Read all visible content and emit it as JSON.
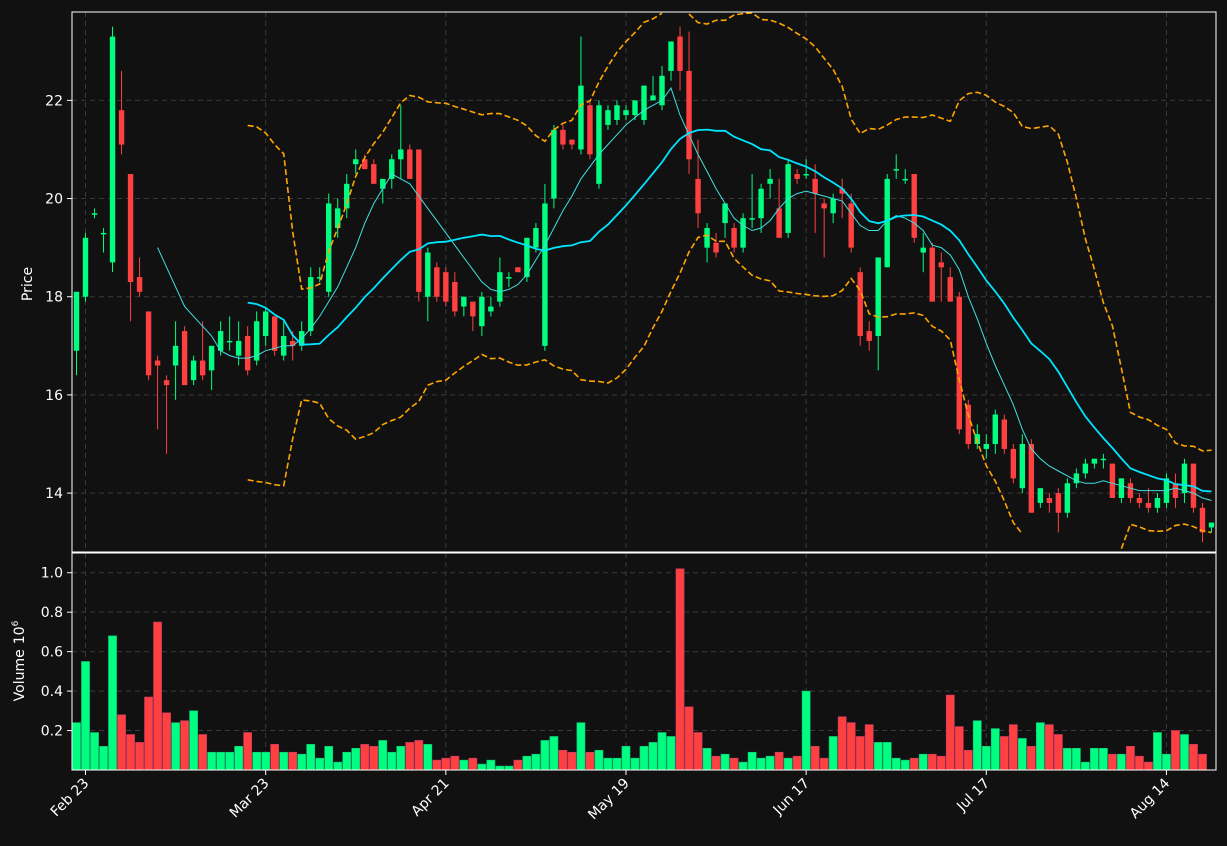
{
  "colors": {
    "background": "#111111",
    "up": "#00ff80",
    "down": "#ff4040",
    "ma_fast": "#40e0e0",
    "ma_slow": "#00e5ff",
    "bands": "#ffa500",
    "grid": "#3a3a3a",
    "axis": "#ffffff",
    "text": "#ffffff"
  },
  "chart_data": [
    {
      "type": "candlestick",
      "ylabel": "Price",
      "ylim": [
        12.8,
        23.8
      ],
      "yticks": [
        "14",
        "16",
        "18",
        "20",
        "22"
      ],
      "grid": true,
      "overlays": [
        "moving average (short)",
        "moving average (long)",
        "upper band",
        "lower band"
      ],
      "ohlc": [
        [
          16.9,
          18.1,
          16.4,
          18.1
        ],
        [
          18.0,
          19.3,
          17.9,
          19.2
        ],
        [
          19.7,
          19.8,
          19.6,
          19.7
        ],
        [
          19.3,
          19.4,
          18.9,
          19.3
        ],
        [
          18.7,
          23.5,
          18.5,
          23.3
        ],
        [
          21.8,
          22.6,
          20.9,
          21.1
        ],
        [
          20.5,
          20.5,
          17.5,
          18.3
        ],
        [
          18.4,
          18.8,
          18.0,
          18.1
        ],
        [
          17.7,
          17.7,
          16.3,
          16.4
        ],
        [
          16.7,
          16.8,
          15.3,
          16.6
        ],
        [
          16.3,
          16.4,
          14.8,
          16.2
        ],
        [
          16.6,
          17.5,
          15.9,
          17.0
        ],
        [
          17.3,
          17.4,
          16.2,
          16.2
        ],
        [
          16.3,
          16.8,
          16.2,
          16.7
        ],
        [
          16.7,
          17.5,
          16.3,
          16.4
        ],
        [
          16.5,
          17.0,
          16.1,
          17.0
        ],
        [
          16.9,
          17.5,
          16.8,
          17.3
        ],
        [
          17.1,
          17.6,
          16.9,
          17.1
        ],
        [
          16.8,
          17.5,
          16.6,
          17.1
        ],
        [
          17.2,
          17.4,
          16.4,
          16.5
        ],
        [
          16.7,
          17.7,
          16.6,
          17.5
        ],
        [
          17.2,
          17.8,
          17.0,
          17.7
        ],
        [
          17.6,
          17.6,
          16.8,
          16.9
        ],
        [
          16.8,
          17.5,
          16.7,
          17.2
        ],
        [
          17.1,
          17.3,
          16.7,
          17.0
        ],
        [
          17.0,
          17.5,
          16.9,
          17.3
        ],
        [
          17.3,
          18.6,
          17.2,
          18.4
        ],
        [
          18.4,
          18.6,
          18.3,
          18.4
        ],
        [
          18.1,
          20.1,
          18.0,
          19.9
        ],
        [
          19.4,
          20.0,
          19.2,
          19.8
        ],
        [
          19.8,
          20.5,
          19.6,
          20.3
        ],
        [
          20.7,
          21.0,
          20.5,
          20.8
        ],
        [
          20.8,
          20.9,
          20.6,
          20.6
        ],
        [
          20.7,
          20.8,
          20.3,
          20.3
        ],
        [
          20.2,
          20.4,
          19.9,
          20.4
        ],
        [
          20.4,
          20.9,
          20.2,
          20.8
        ],
        [
          20.8,
          21.9,
          20.4,
          21.0
        ],
        [
          21.0,
          21.1,
          20.4,
          20.4
        ],
        [
          21.0,
          21.0,
          17.9,
          18.1
        ],
        [
          18.0,
          19.0,
          17.5,
          18.9
        ],
        [
          18.6,
          18.7,
          17.9,
          18.0
        ],
        [
          18.5,
          18.6,
          17.8,
          17.9
        ],
        [
          18.3,
          18.5,
          17.6,
          17.7
        ],
        [
          17.8,
          18.0,
          17.6,
          18.0
        ],
        [
          17.9,
          17.9,
          17.3,
          17.6
        ],
        [
          17.4,
          18.1,
          17.2,
          18.0
        ],
        [
          17.7,
          18.0,
          17.6,
          17.8
        ],
        [
          17.9,
          18.8,
          17.8,
          18.5
        ],
        [
          18.4,
          18.5,
          18.2,
          18.4
        ],
        [
          18.6,
          18.6,
          18.5,
          18.5
        ],
        [
          18.4,
          19.2,
          18.3,
          19.2
        ],
        [
          19.0,
          19.5,
          18.9,
          19.4
        ],
        [
          17.0,
          20.3,
          16.9,
          19.9
        ],
        [
          20.0,
          21.5,
          19.8,
          21.4
        ],
        [
          21.4,
          21.5,
          21.0,
          21.1
        ],
        [
          21.2,
          21.2,
          21.0,
          21.1
        ],
        [
          21.0,
          23.3,
          20.9,
          22.3
        ],
        [
          21.9,
          22.0,
          20.8,
          20.9
        ],
        [
          20.3,
          22.0,
          20.2,
          21.9
        ],
        [
          21.5,
          21.9,
          21.4,
          21.8
        ],
        [
          21.6,
          22.0,
          21.5,
          21.9
        ],
        [
          21.7,
          21.9,
          21.6,
          21.8
        ],
        [
          21.7,
          22.0,
          21.6,
          22.0
        ],
        [
          21.6,
          22.3,
          21.5,
          22.3
        ],
        [
          22.0,
          22.5,
          22.0,
          22.1
        ],
        [
          21.9,
          22.7,
          21.8,
          22.5
        ],
        [
          22.6,
          23.2,
          22.4,
          23.2
        ],
        [
          23.3,
          23.5,
          22.2,
          22.6
        ],
        [
          22.6,
          23.4,
          20.5,
          20.8
        ],
        [
          20.4,
          21.2,
          19.4,
          19.7
        ],
        [
          19.0,
          19.5,
          18.7,
          19.4
        ],
        [
          19.1,
          19.3,
          18.8,
          18.9
        ],
        [
          19.5,
          19.9,
          19.2,
          19.9
        ],
        [
          19.4,
          19.5,
          18.9,
          19.0
        ],
        [
          19.0,
          19.7,
          18.9,
          19.6
        ],
        [
          19.6,
          20.5,
          19.4,
          19.6
        ],
        [
          19.6,
          20.3,
          19.3,
          20.2
        ],
        [
          20.3,
          20.6,
          20.0,
          20.4
        ],
        [
          19.8,
          20.4,
          19.3,
          19.2
        ],
        [
          19.3,
          20.8,
          19.2,
          20.7
        ],
        [
          20.5,
          20.6,
          20.3,
          20.4
        ],
        [
          20.5,
          20.8,
          20.4,
          20.5
        ],
        [
          20.4,
          20.7,
          19.3,
          20.1
        ],
        [
          19.9,
          20.0,
          18.8,
          19.8
        ],
        [
          19.7,
          20.1,
          19.5,
          20.0
        ],
        [
          20.2,
          20.4,
          19.6,
          20.1
        ],
        [
          19.9,
          20.1,
          18.9,
          19.0
        ],
        [
          18.5,
          18.6,
          17.0,
          17.2
        ],
        [
          17.3,
          17.5,
          16.9,
          17.1
        ],
        [
          17.2,
          18.8,
          16.5,
          18.8
        ],
        [
          18.6,
          20.5,
          18.6,
          20.4
        ],
        [
          20.6,
          20.9,
          20.4,
          20.6
        ],
        [
          20.4,
          20.6,
          20.3,
          20.4
        ],
        [
          20.5,
          20.5,
          19.1,
          19.2
        ],
        [
          18.9,
          19.3,
          18.5,
          19.0
        ],
        [
          19.0,
          19.1,
          18.0,
          17.9
        ],
        [
          18.7,
          18.9,
          17.9,
          18.6
        ],
        [
          18.4,
          18.6,
          17.9,
          17.9
        ],
        [
          18.0,
          18.1,
          15.2,
          15.3
        ],
        [
          15.8,
          15.9,
          14.9,
          15.0
        ],
        [
          15.0,
          15.4,
          14.9,
          15.2
        ],
        [
          14.9,
          15.2,
          14.7,
          15.0
        ],
        [
          15.0,
          15.7,
          14.8,
          15.6
        ],
        [
          15.5,
          15.6,
          14.8,
          14.9
        ],
        [
          14.9,
          15.0,
          14.2,
          14.3
        ],
        [
          14.1,
          15.2,
          14.0,
          15.0
        ],
        [
          15.0,
          15.1,
          13.6,
          13.6
        ],
        [
          13.8,
          14.1,
          13.7,
          14.1
        ],
        [
          13.9,
          14.0,
          13.6,
          13.8
        ],
        [
          14.0,
          14.1,
          13.2,
          13.6
        ],
        [
          13.6,
          14.3,
          13.5,
          14.2
        ],
        [
          14.2,
          14.5,
          14.1,
          14.4
        ],
        [
          14.4,
          14.7,
          14.3,
          14.6
        ],
        [
          14.6,
          14.7,
          14.5,
          14.7
        ],
        [
          14.7,
          14.8,
          14.5,
          14.7
        ],
        [
          14.6,
          14.6,
          13.9,
          13.9
        ],
        [
          13.9,
          14.3,
          13.8,
          14.3
        ],
        [
          14.2,
          14.3,
          13.8,
          13.9
        ],
        [
          13.9,
          14.0,
          13.7,
          13.8
        ],
        [
          13.8,
          14.1,
          13.6,
          13.7
        ],
        [
          13.7,
          14.0,
          13.6,
          13.9
        ],
        [
          13.8,
          14.4,
          13.7,
          14.3
        ],
        [
          14.2,
          14.4,
          13.7,
          13.9
        ],
        [
          14.0,
          14.7,
          13.8,
          14.6
        ],
        [
          14.6,
          14.6,
          13.6,
          13.7
        ],
        [
          13.7,
          13.8,
          13.0,
          13.2
        ],
        [
          13.3,
          13.4,
          13.2,
          13.4
        ]
      ],
      "ma_fast": [
        null,
        null,
        null,
        null,
        null,
        null,
        null,
        null,
        null,
        19.0,
        18.6,
        18.2,
        17.8,
        17.6,
        17.4,
        17.2,
        16.9,
        16.8,
        16.75,
        16.75,
        16.8,
        16.9,
        16.95,
        17.0,
        17.0,
        17.15,
        17.35,
        17.6,
        17.9,
        18.2,
        18.6,
        19.0,
        19.5,
        19.9,
        20.2,
        20.5,
        20.4,
        20.3,
        20.05,
        19.8,
        19.55,
        19.3,
        19.05,
        18.8,
        18.55,
        18.3,
        18.15,
        18.1,
        18.15,
        18.25,
        18.45,
        18.75,
        19.05,
        19.4,
        19.75,
        20.05,
        20.4,
        20.65,
        20.9,
        21.1,
        21.3,
        21.5,
        21.65,
        21.8,
        21.9,
        22.0,
        22.25,
        21.7,
        21.3,
        20.9,
        20.55,
        20.2,
        19.9,
        19.6,
        19.45,
        19.35,
        19.4,
        19.55,
        19.8,
        20.0,
        20.1,
        20.15,
        20.1,
        20.05,
        20.0,
        19.95,
        19.7,
        19.45,
        19.35,
        19.35,
        19.55,
        19.65,
        19.6,
        19.5,
        19.35,
        19.05,
        19.0,
        18.85,
        18.55,
        18.0,
        17.55,
        17.05,
        16.6,
        16.2,
        15.8,
        15.3,
        14.9,
        14.7,
        14.55,
        14.45,
        14.35,
        14.25,
        14.2,
        14.2,
        14.25,
        14.2,
        14.15,
        14.1,
        14.05,
        14.05,
        14.05,
        14.05,
        14.1,
        14.05,
        14.0,
        13.9,
        13.85
      ]
    },
    {
      "type": "bar",
      "ylabel": "Volume",
      "unit_exponent": "6",
      "ylim": [
        0,
        1.1
      ],
      "yticks": [
        "0.2",
        "0.4",
        "0.6",
        "0.8",
        "1.0"
      ],
      "xticks": [
        "Feb 23",
        "Mar 23",
        "Apr 21",
        "May 19",
        "Jun 17",
        "Jul 17",
        "Aug 14"
      ],
      "grid": true,
      "values": [
        0.24,
        0.55,
        0.19,
        0.12,
        0.68,
        0.28,
        0.18,
        0.14,
        0.37,
        0.75,
        0.29,
        0.24,
        0.25,
        0.3,
        0.18,
        0.09,
        0.09,
        0.09,
        0.12,
        0.19,
        0.09,
        0.09,
        0.13,
        0.09,
        0.09,
        0.08,
        0.13,
        0.06,
        0.12,
        0.04,
        0.09,
        0.11,
        0.13,
        0.12,
        0.15,
        0.09,
        0.12,
        0.14,
        0.15,
        0.13,
        0.05,
        0.06,
        0.07,
        0.05,
        0.06,
        0.03,
        0.05,
        0.02,
        0.02,
        0.05,
        0.07,
        0.08,
        0.15,
        0.17,
        0.1,
        0.09,
        0.24,
        0.09,
        0.1,
        0.06,
        0.06,
        0.12,
        0.06,
        0.12,
        0.14,
        0.19,
        0.17,
        1.02,
        0.32,
        0.19,
        0.11,
        0.07,
        0.08,
        0.06,
        0.04,
        0.09,
        0.06,
        0.07,
        0.09,
        0.06,
        0.07,
        0.4,
        0.12,
        0.06,
        0.17,
        0.27,
        0.24,
        0.17,
        0.23,
        0.14,
        0.14,
        0.06,
        0.05,
        0.06,
        0.08,
        0.08,
        0.07,
        0.38,
        0.22,
        0.1,
        0.25,
        0.12,
        0.21,
        0.17,
        0.23,
        0.16,
        0.12,
        0.24,
        0.23,
        0.18,
        0.11,
        0.11,
        0.04,
        0.11,
        0.11,
        0.08,
        0.08,
        0.12,
        0.07,
        0.04,
        0.19,
        0.08,
        0.2,
        0.18,
        0.13,
        0.08
      ]
    }
  ]
}
